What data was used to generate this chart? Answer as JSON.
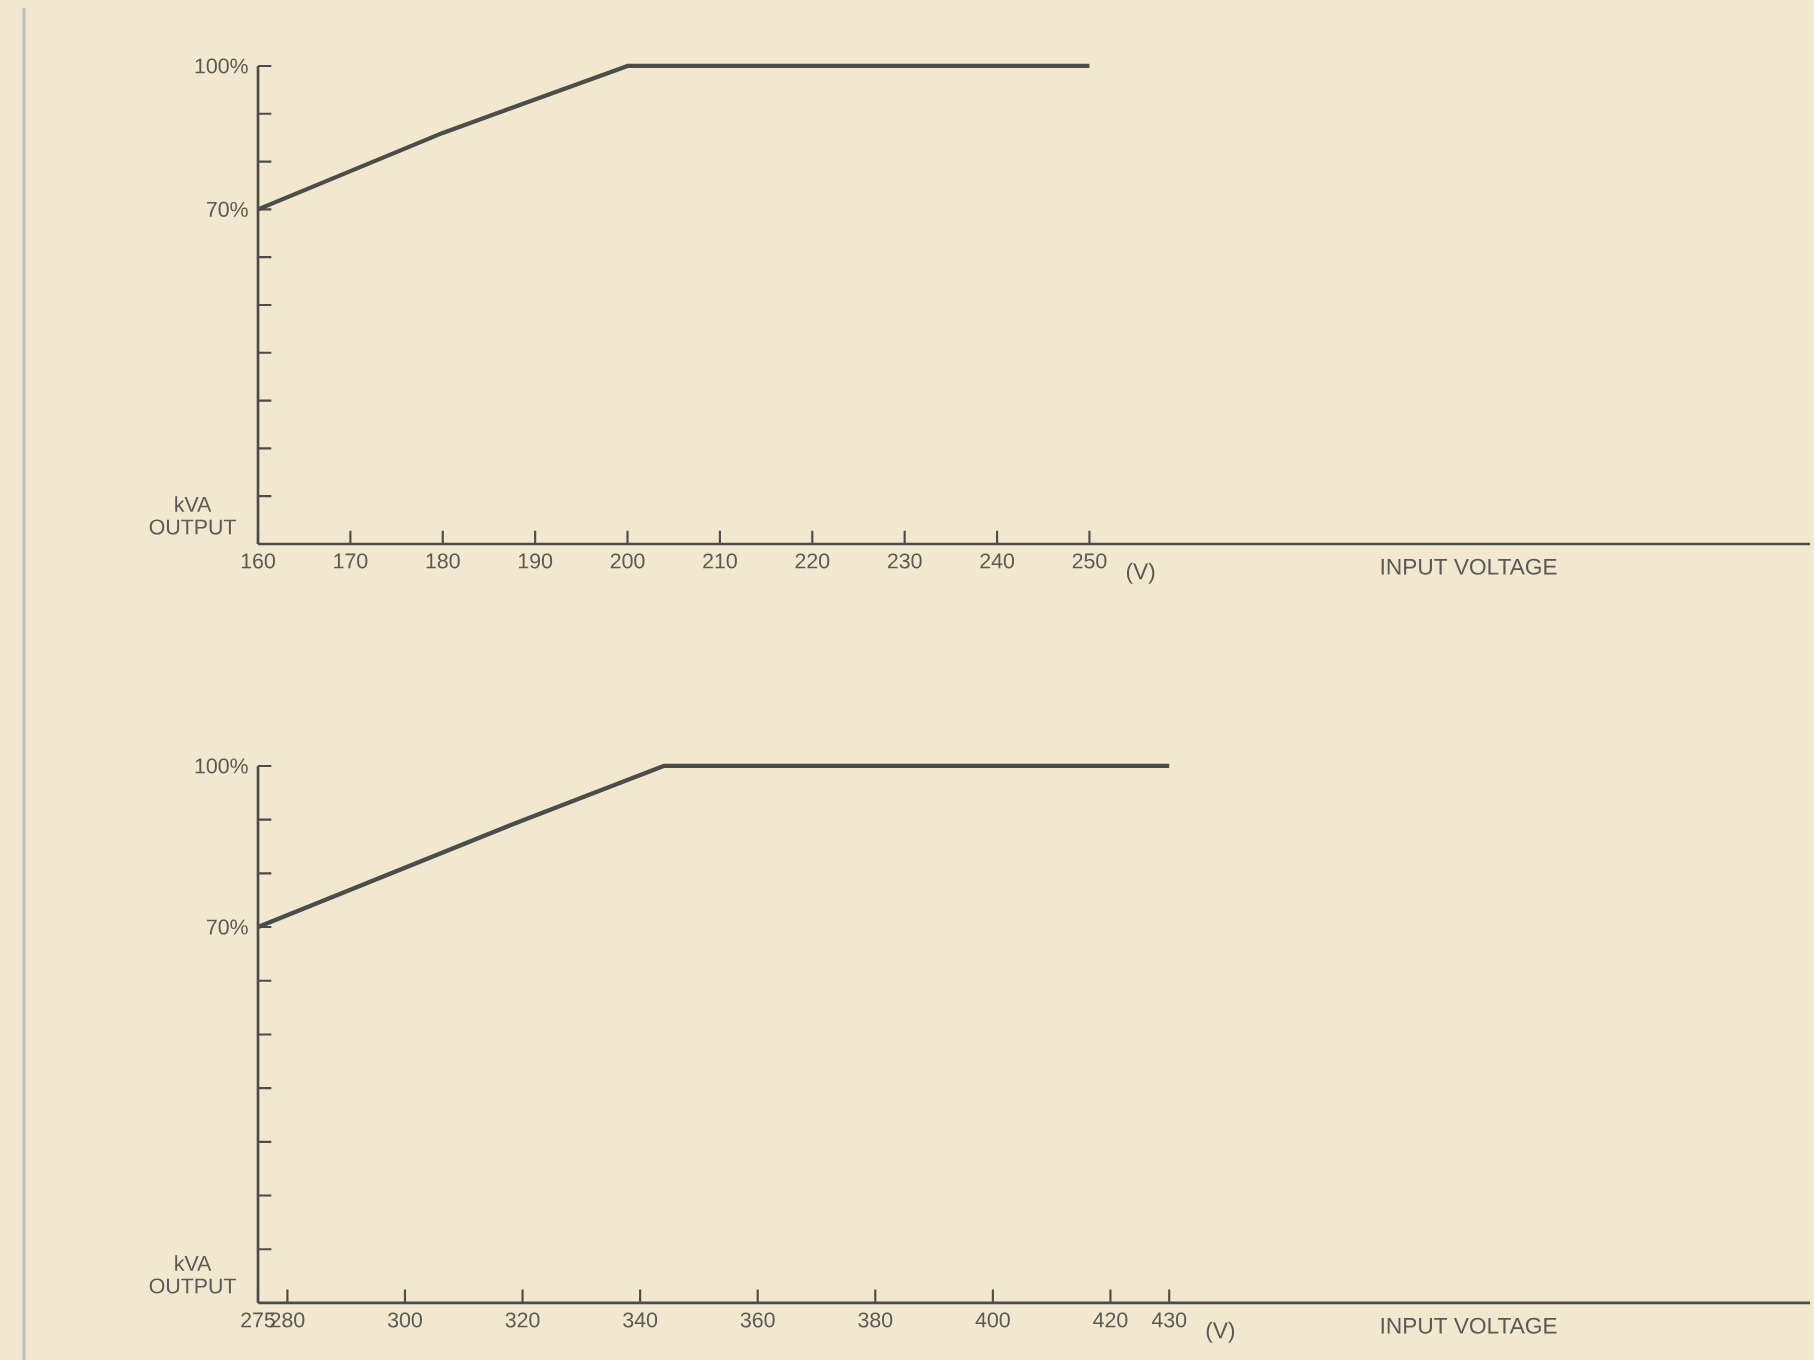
{
  "chart_data": [
    {
      "type": "line",
      "xlabel": "INPUT VOLTAGE",
      "ylabel": "kVA OUTPUT",
      "annotations": [
        "(V)"
      ],
      "series": [
        {
          "color": "#4a4d48",
          "x": [
            160,
            180,
            200,
            250
          ],
          "values": [
            70,
            86,
            100,
            100
          ]
        }
      ],
      "xlim": [
        160,
        328
      ],
      "ylim": [
        0,
        100
      ],
      "xticks": [
        160,
        170,
        180,
        190,
        200,
        210,
        220,
        230,
        240,
        250
      ],
      "yticks": [
        {
          "value": 10,
          "label": null
        },
        {
          "value": 20,
          "label": null
        },
        {
          "value": 30,
          "label": null
        },
        {
          "value": 40,
          "label": null
        },
        {
          "value": 50,
          "label": null
        },
        {
          "value": 60,
          "label": null
        },
        {
          "value": 70,
          "label": "70%"
        },
        {
          "value": 80,
          "label": null
        },
        {
          "value": 90,
          "label": null
        },
        {
          "value": 100,
          "label": "100%"
        }
      ]
    },
    {
      "type": "line",
      "xlabel": "INPUT VOLTAGE",
      "ylabel": "kVA OUTPUT",
      "annotations": [
        "(V)"
      ],
      "series": [
        {
          "color": "#4a4d48",
          "x": [
            275,
            318,
            344,
            430
          ],
          "values": [
            70,
            89,
            100,
            100
          ]
        }
      ],
      "xlim": [
        275,
        539
      ],
      "ylim": [
        0,
        100
      ],
      "xticks": [
        275,
        280,
        300,
        320,
        340,
        360,
        380,
        400,
        420,
        430
      ],
      "yticks": [
        {
          "value": 10,
          "label": null
        },
        {
          "value": 20,
          "label": null
        },
        {
          "value": 30,
          "label": null
        },
        {
          "value": 40,
          "label": null
        },
        {
          "value": 50,
          "label": null
        },
        {
          "value": 60,
          "label": null
        },
        {
          "value": 70,
          "label": "70%"
        },
        {
          "value": 80,
          "label": null
        },
        {
          "value": 90,
          "label": null
        },
        {
          "value": 100,
          "label": "100%"
        }
      ]
    }
  ]
}
